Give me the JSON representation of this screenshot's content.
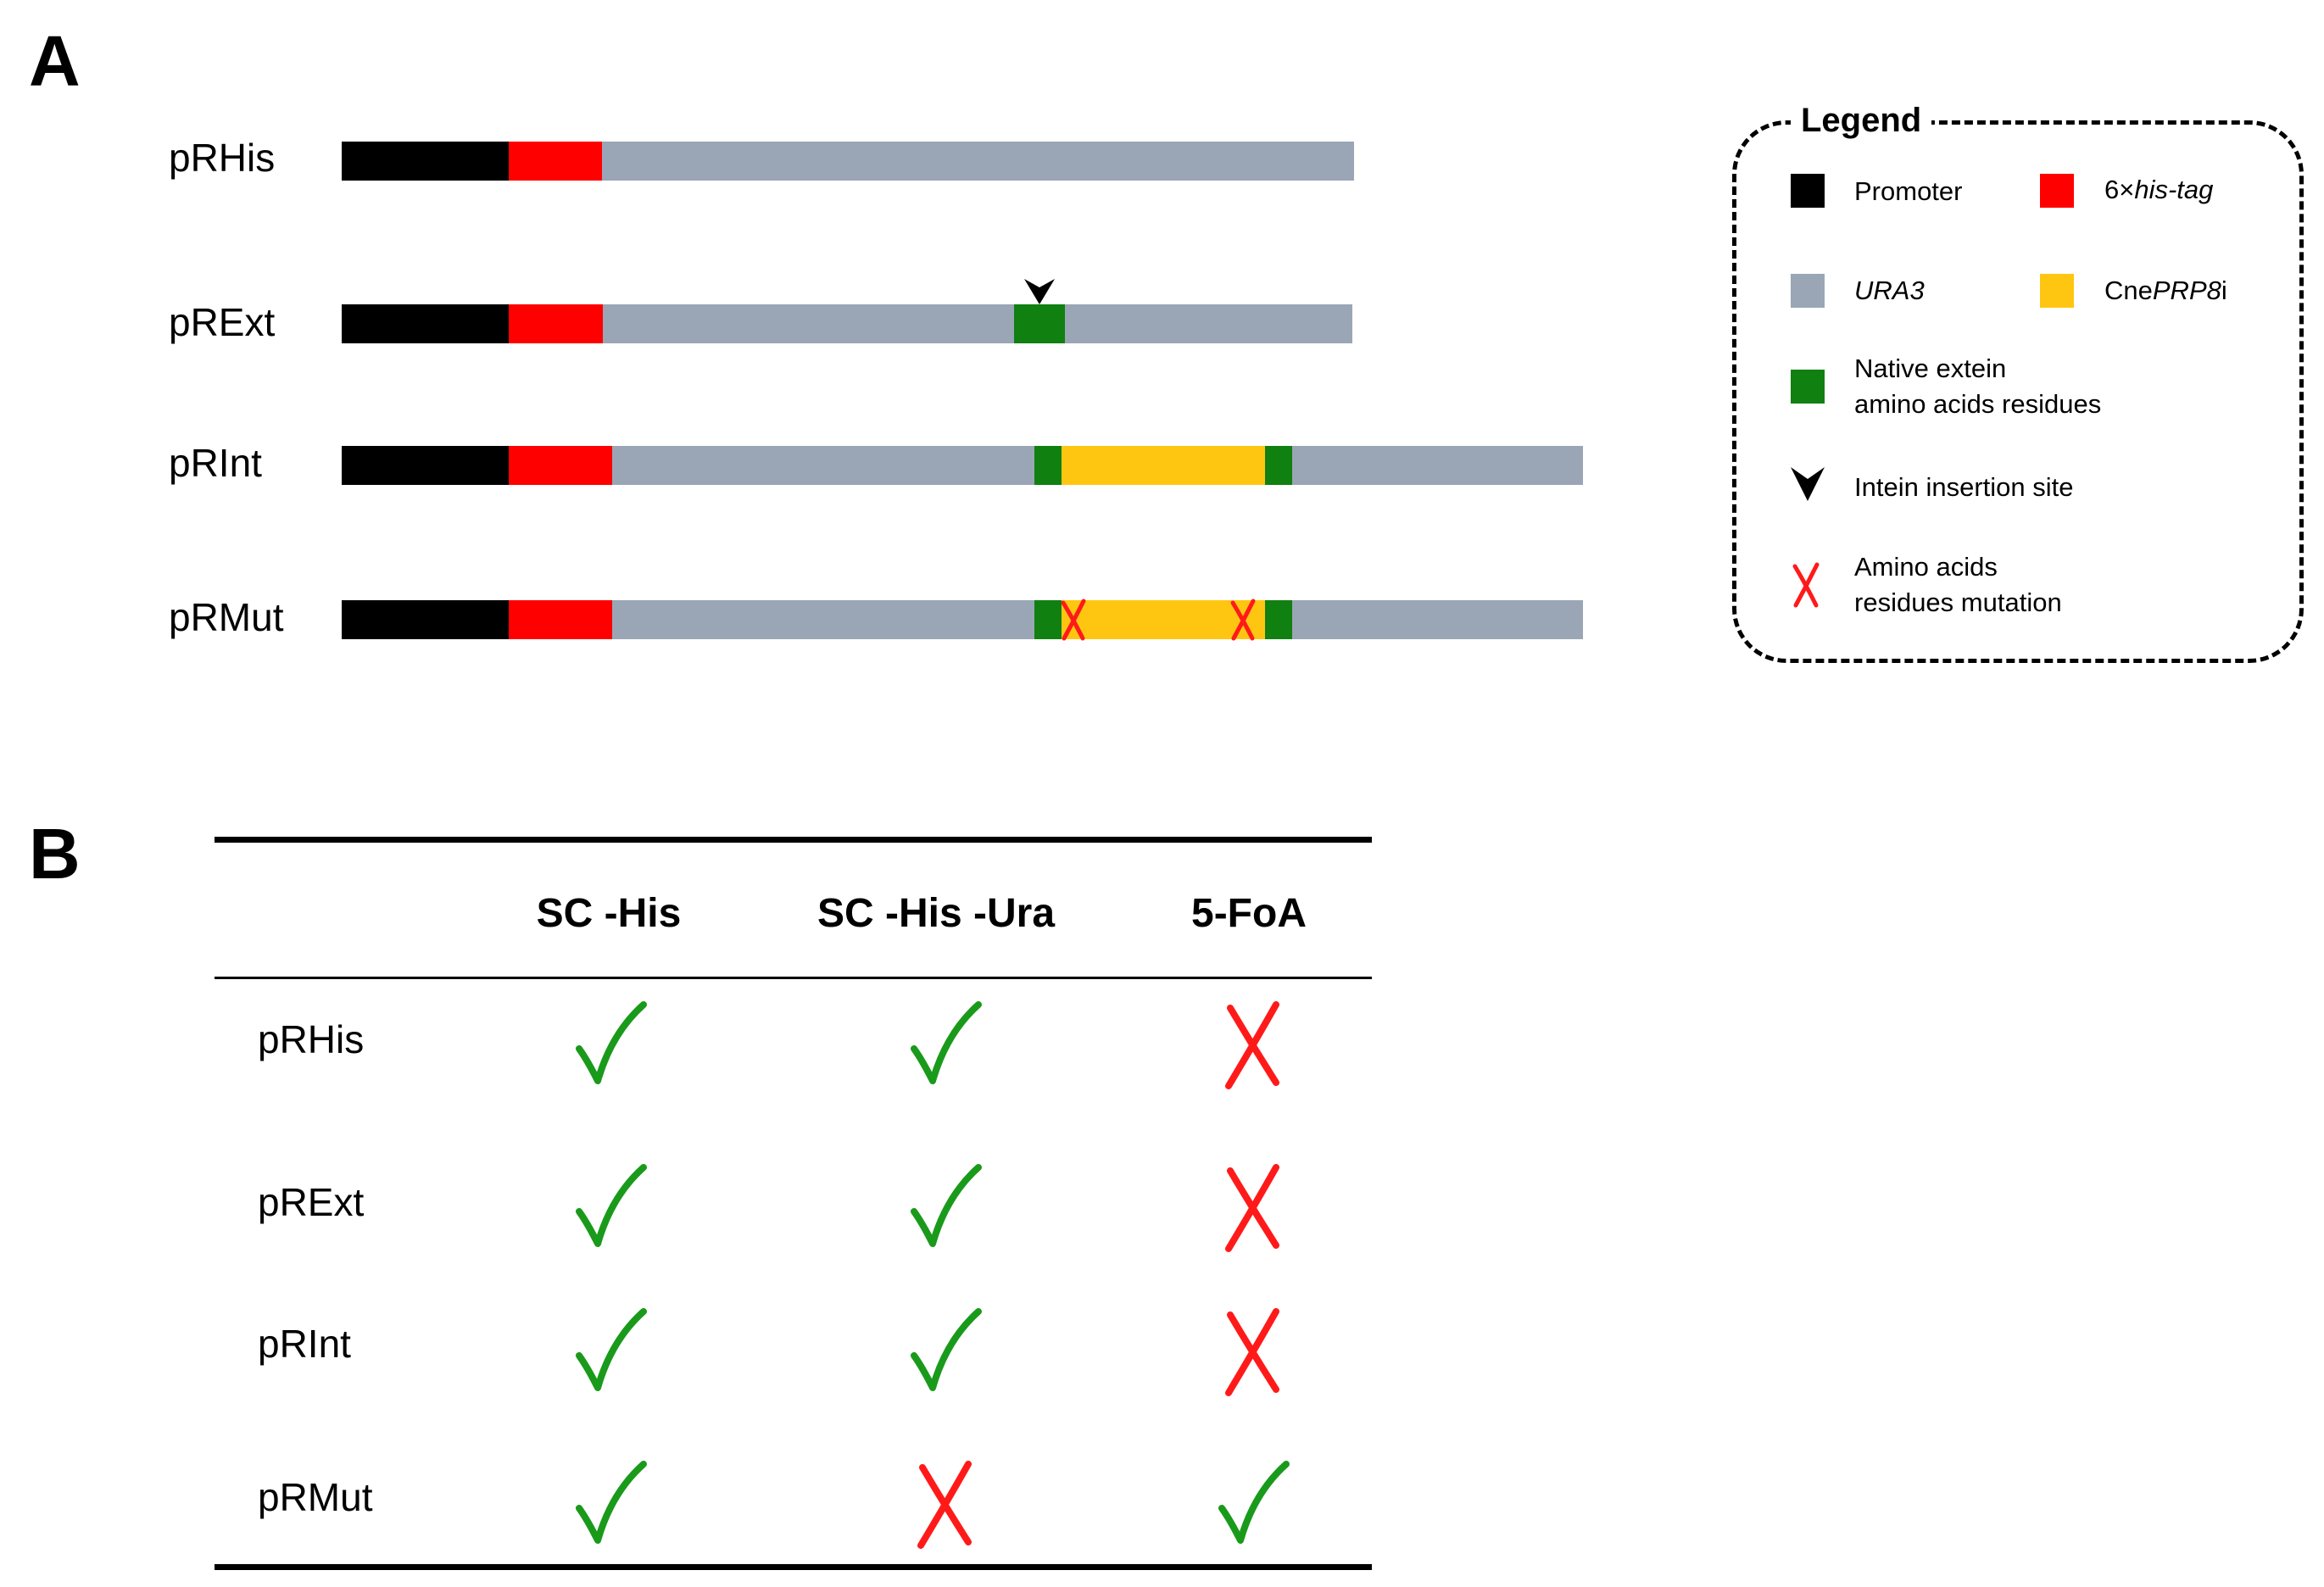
{
  "panelA": {
    "label": "A",
    "constructs": [
      {
        "name": "pRHis"
      },
      {
        "name": "pRExt"
      },
      {
        "name": "pRInt"
      },
      {
        "name": "pRMut"
      }
    ],
    "legend": {
      "title": "Legend",
      "items": [
        {
          "key": "promoter",
          "label": "Promoter",
          "color": "#000000"
        },
        {
          "key": "his_tag",
          "label_prefix": "6×",
          "label_italic": "his-tag",
          "color": "#ff0000"
        },
        {
          "key": "ura3",
          "label_italic": "URA3",
          "color": "#9aa6b5"
        },
        {
          "key": "prp8i",
          "label_prefix": "Cne",
          "label_italic": "PRP8",
          "label_suffix": "i",
          "color": "#ffc611"
        },
        {
          "key": "extein",
          "label_line1": "Native extein",
          "label_line2": "amino acids residues",
          "color": "#108010"
        },
        {
          "key": "insertion",
          "label": "Intein insertion site",
          "icon": "chevron-down-icon"
        },
        {
          "key": "mutation",
          "label_line1": "Amino acids",
          "label_line2": "residues mutation",
          "icon": "red-cross-icon",
          "color": "#ff1a1a"
        }
      ]
    }
  },
  "panelB": {
    "label": "B",
    "columns": [
      "SC -His",
      "SC -His -Ura",
      "5-FoA"
    ],
    "rows": [
      {
        "name": "pRHis",
        "growth": [
          true,
          true,
          false
        ]
      },
      {
        "name": "pRExt",
        "growth": [
          true,
          true,
          false
        ]
      },
      {
        "name": "pRInt",
        "growth": [
          true,
          true,
          false
        ]
      },
      {
        "name": "pRMut",
        "growth": [
          true,
          false,
          true
        ]
      }
    ],
    "check_color": "#1a9a1a",
    "cross_color": "#ff1a1a"
  }
}
